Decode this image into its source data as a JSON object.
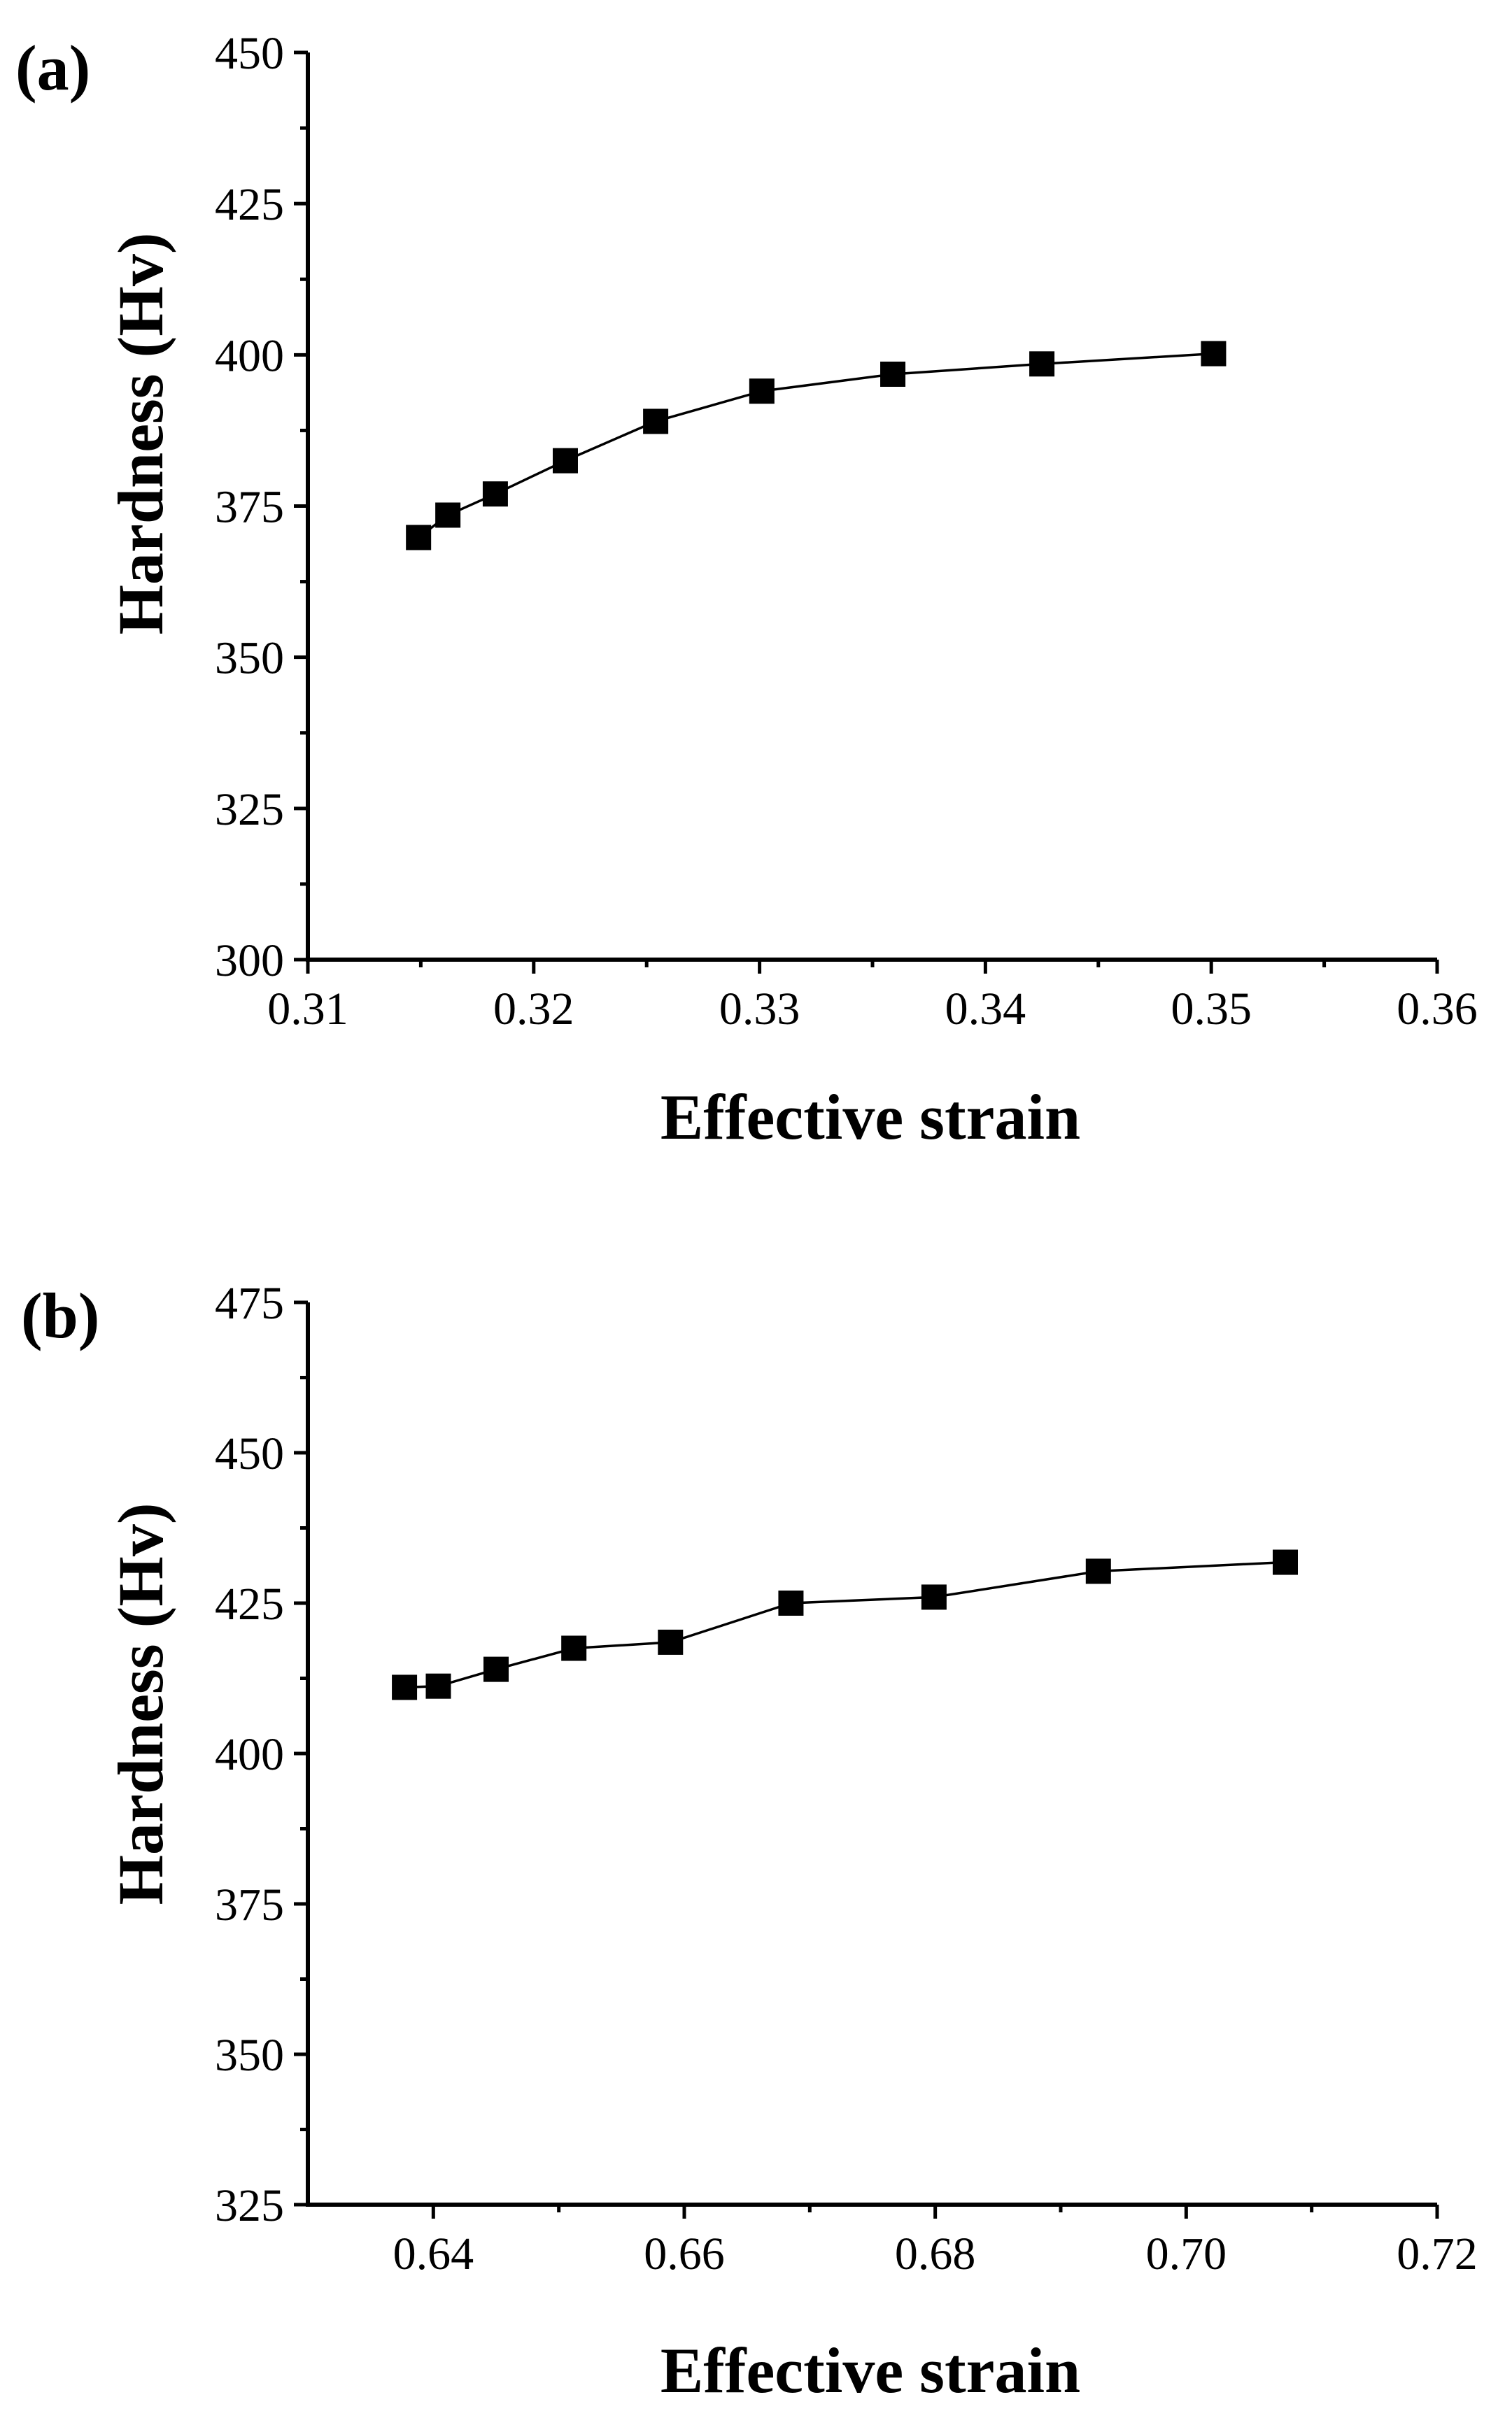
{
  "chart_data": [
    {
      "type": "line",
      "panel_label": "(a)",
      "xlabel": "Effective strain",
      "ylabel": "Hardness (Hv)",
      "xlim": [
        0.31,
        0.36
      ],
      "ylim": [
        300,
        450
      ],
      "xticks": [
        0.31,
        0.32,
        0.33,
        0.34,
        0.35,
        0.36
      ],
      "xtick_labels": [
        "0.31",
        "0.32",
        "0.33",
        "0.34",
        "0.35",
        "0.36"
      ],
      "yticks": [
        300,
        325,
        350,
        375,
        400,
        425,
        450
      ],
      "ytick_labels": [
        "300",
        "325",
        "350",
        "375",
        "400",
        "425",
        "450"
      ],
      "marker": "square",
      "series": [
        {
          "name": "Hardness",
          "x": [
            0.3149,
            0.3162,
            0.3183,
            0.3214,
            0.3254,
            0.3301,
            0.3359,
            0.3425,
            0.3501
          ],
          "y": [
            369.8,
            373.5,
            377.0,
            382.5,
            389.0,
            394.0,
            396.8,
            398.5,
            400.2
          ]
        }
      ]
    },
    {
      "type": "line",
      "panel_label": "(b)",
      "xlabel": "Effective strain",
      "ylabel": "Hardness (Hv)",
      "xlim": [
        0.63,
        0.72
      ],
      "ylim": [
        325,
        475
      ],
      "xticks": [
        0.64,
        0.66,
        0.68,
        0.7,
        0.72
      ],
      "xtick_labels": [
        "0.64",
        "0.66",
        "0.68",
        "0.70",
        "0.72"
      ],
      "yticks": [
        325,
        350,
        375,
        400,
        425,
        450,
        475
      ],
      "ytick_labels": [
        "325",
        "350",
        "375",
        "400",
        "425",
        "450",
        "475"
      ],
      "marker": "square",
      "series": [
        {
          "name": "Hardness",
          "x": [
            0.6377,
            0.6404,
            0.645,
            0.6512,
            0.6589,
            0.6685,
            0.6799,
            0.693,
            0.7079
          ],
          "y": [
            411.0,
            411.2,
            414.0,
            417.5,
            418.5,
            425.0,
            426.0,
            430.3,
            431.8
          ]
        }
      ]
    }
  ]
}
